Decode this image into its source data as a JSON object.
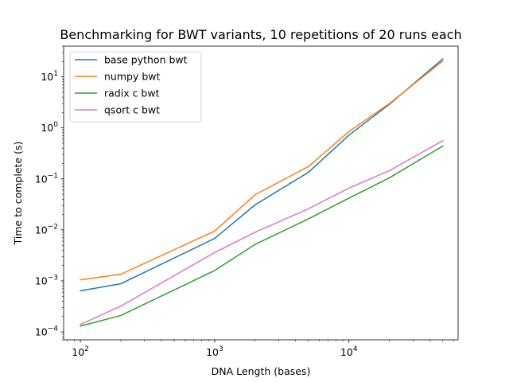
{
  "chart_data": {
    "type": "line",
    "title": "Benchmarking for BWT variants, 10 repetitions of 20 runs each",
    "xlabel": "DNA Length (bases)",
    "ylabel": "Time to complete (s)",
    "xscale": "log",
    "yscale": "log",
    "xlim": [
      75,
      65000
    ],
    "ylim": [
      7e-05,
      40
    ],
    "xticks": [
      {
        "value": 100,
        "base": "10",
        "exp": "2"
      },
      {
        "value": 1000,
        "base": "10",
        "exp": "3"
      },
      {
        "value": 10000,
        "base": "10",
        "exp": "4"
      }
    ],
    "yticks": [
      {
        "value": 0.0001,
        "base": "10",
        "exp": "−4"
      },
      {
        "value": 0.001,
        "base": "10",
        "exp": "−3"
      },
      {
        "value": 0.01,
        "base": "10",
        "exp": "−2"
      },
      {
        "value": 0.1,
        "base": "10",
        "exp": "−1"
      },
      {
        "value": 1,
        "base": "10",
        "exp": "0"
      },
      {
        "value": 10,
        "base": "10",
        "exp": "1"
      }
    ],
    "grid": false,
    "legend_position": "top-left",
    "x": [
      100,
      200,
      1000,
      2000,
      5000,
      10000,
      20000,
      50000
    ],
    "series": [
      {
        "name": "base python bwt",
        "color": "#1f77b4",
        "values": [
          0.00064,
          0.00088,
          0.0068,
          0.031,
          0.135,
          0.72,
          2.9,
          22.5
        ]
      },
      {
        "name": "numpy bwt",
        "color": "#ff7f0e",
        "values": [
          0.00105,
          0.00135,
          0.0095,
          0.049,
          0.175,
          0.85,
          3.0,
          20.5
        ]
      },
      {
        "name": "radix c bwt",
        "color": "#2ca02c",
        "values": [
          0.00013,
          0.00021,
          0.0016,
          0.0052,
          0.0165,
          0.042,
          0.105,
          0.44
        ]
      },
      {
        "name": "qsort c bwt",
        "color": "#e377c2",
        "values": [
          0.00014,
          0.00032,
          0.0036,
          0.009,
          0.026,
          0.066,
          0.145,
          0.56
        ]
      }
    ]
  }
}
